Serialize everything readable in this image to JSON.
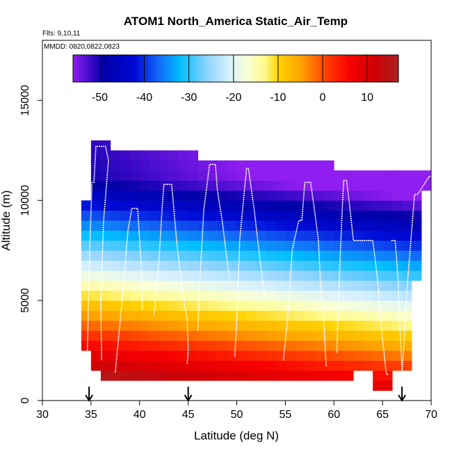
{
  "chart_data": {
    "type": "heatmap",
    "title": "ATOM1 North_America Static_Air_Temp",
    "flights_label": "Flts: 9,10,11",
    "dates_label": "MMDD: 0820,0822,0823",
    "xlabel": "Latitude (deg N)",
    "ylabel": "Altitude (m)",
    "xlim": [
      30,
      70
    ],
    "ylim": [
      0,
      18000
    ],
    "x_ticks": [
      30,
      35,
      40,
      45,
      50,
      55,
      60,
      65,
      70
    ],
    "y_ticks": [
      0,
      5000,
      10000,
      15000
    ],
    "colorbar": {
      "range": [
        -56,
        17
      ],
      "tick_values": [
        -50,
        -40,
        -30,
        -20,
        -10,
        0,
        10
      ],
      "tick_labels": [
        "-50",
        "-40",
        "-30",
        "-20",
        "-10",
        "0",
        "10"
      ]
    },
    "cell_size": {
      "lat": 1,
      "alt": 500
    },
    "columns": [
      {
        "lat": 34,
        "alt_min": 2500,
        "alt_max": 10000
      },
      {
        "lat": 35,
        "alt_min": 1500,
        "alt_max": 13000
      },
      {
        "lat": 36,
        "alt_min": 1000,
        "alt_max": 13000
      },
      {
        "lat": 37,
        "alt_min": 1000,
        "alt_max": 12500
      },
      {
        "lat": 38,
        "alt_min": 1000,
        "alt_max": 12500
      },
      {
        "lat": 39,
        "alt_min": 1000,
        "alt_max": 12500
      },
      {
        "lat": 40,
        "alt_min": 1000,
        "alt_max": 12500
      },
      {
        "lat": 41,
        "alt_min": 1000,
        "alt_max": 12500
      },
      {
        "lat": 42,
        "alt_min": 1000,
        "alt_max": 12500
      },
      {
        "lat": 43,
        "alt_min": 1000,
        "alt_max": 12500
      },
      {
        "lat": 44,
        "alt_min": 1000,
        "alt_max": 12500
      },
      {
        "lat": 45,
        "alt_min": 1000,
        "alt_max": 12500
      },
      {
        "lat": 46,
        "alt_min": 1000,
        "alt_max": 12000
      },
      {
        "lat": 47,
        "alt_min": 1000,
        "alt_max": 12000
      },
      {
        "lat": 48,
        "alt_min": 1000,
        "alt_max": 12000
      },
      {
        "lat": 49,
        "alt_min": 1000,
        "alt_max": 12000
      },
      {
        "lat": 50,
        "alt_min": 1000,
        "alt_max": 12000
      },
      {
        "lat": 51,
        "alt_min": 1000,
        "alt_max": 12000
      },
      {
        "lat": 52,
        "alt_min": 1000,
        "alt_max": 12000
      },
      {
        "lat": 53,
        "alt_min": 1000,
        "alt_max": 12000
      },
      {
        "lat": 54,
        "alt_min": 1000,
        "alt_max": 12000
      },
      {
        "lat": 55,
        "alt_min": 1000,
        "alt_max": 12000
      },
      {
        "lat": 56,
        "alt_min": 1000,
        "alt_max": 12000
      },
      {
        "lat": 57,
        "alt_min": 1000,
        "alt_max": 12000
      },
      {
        "lat": 58,
        "alt_min": 1000,
        "alt_max": 12000
      },
      {
        "lat": 59,
        "alt_min": 1000,
        "alt_max": 12000
      },
      {
        "lat": 60,
        "alt_min": 1000,
        "alt_max": 11500
      },
      {
        "lat": 61,
        "alt_min": 1000,
        "alt_max": 11500
      },
      {
        "lat": 62,
        "alt_min": 1500,
        "alt_max": 11500
      },
      {
        "lat": 63,
        "alt_min": 1500,
        "alt_max": 11500
      },
      {
        "lat": 64,
        "alt_min": 500,
        "alt_max": 11500
      },
      {
        "lat": 65,
        "alt_min": 500,
        "alt_max": 11500
      },
      {
        "lat": 66,
        "alt_min": 1500,
        "alt_max": 11500
      },
      {
        "lat": 67,
        "alt_min": 1500,
        "alt_max": 11500
      },
      {
        "lat": 68,
        "alt_min": 6000,
        "alt_max": 11500
      },
      {
        "lat": 69,
        "alt_min": 10500,
        "alt_max": 11500
      }
    ],
    "profiles": [
      {
        "lat": [
          34.6,
          34.7,
          34.9,
          35.1,
          35.3,
          35.5,
          36.5,
          36.8,
          36.3,
          36.0,
          36.1
        ],
        "alt": [
          2000,
          4000,
          8000,
          10900,
          10900,
          12700,
          12700,
          12000,
          9000,
          5000,
          2000
        ]
      },
      {
        "lat": [
          37.5,
          38.2,
          38.8,
          39.2,
          39.8,
          40.2,
          40.3
        ],
        "alt": [
          1400,
          5000,
          8500,
          9600,
          9600,
          6500,
          4500
        ]
      },
      {
        "lat": [
          41.5,
          42.0,
          42.3,
          42.5,
          43.3,
          43.8,
          44.4,
          44.9,
          45.0,
          44.9
        ],
        "alt": [
          4300,
          7000,
          9500,
          10800,
          10800,
          8000,
          5500,
          4000,
          2500,
          1800
        ]
      },
      {
        "lat": [
          46.0,
          46.2,
          46.6,
          47.2,
          47.8,
          48.0,
          48.5,
          49.0,
          49.3
        ],
        "alt": [
          3500,
          6000,
          9500,
          11800,
          11800,
          10500,
          9000,
          7000,
          6000
        ]
      },
      {
        "lat": [
          49.8,
          50.0,
          50.3,
          51.0,
          51.2,
          51.8,
          52.4,
          52.8,
          53.0
        ],
        "alt": [
          2200,
          4000,
          8000,
          11600,
          11600,
          9500,
          7000,
          5500,
          5200
        ]
      },
      {
        "lat": [
          54.8,
          55.3,
          55.7,
          56.0,
          56.4,
          56.7,
          57.0,
          57.6,
          58.0,
          58.4,
          58.6,
          59.0,
          59.2
        ],
        "alt": [
          2000,
          4500,
          7500,
          8200,
          9000,
          9000,
          10900,
          10900,
          9500,
          8000,
          6000,
          3500,
          1700
        ]
      },
      {
        "lat": [
          60.3,
          60.5,
          60.8,
          61.0,
          61.3,
          61.6,
          62.0,
          62.8,
          63.5,
          63.7,
          64.0,
          64.5,
          64.9,
          65.4,
          65.6
        ],
        "alt": [
          2400,
          5500,
          9000,
          11000,
          11000,
          9800,
          8000,
          8000,
          8000,
          8000,
          8000,
          6000,
          3500,
          1300,
          1300
        ]
      },
      {
        "lat": [
          65.9,
          66.3,
          66.6,
          66.8,
          67.0,
          67.2,
          67.5,
          68.0,
          68.3,
          68.6,
          69.0,
          69.4,
          69.8,
          70.0
        ],
        "alt": [
          8000,
          8000,
          6000,
          3500,
          1500,
          2800,
          5500,
          8500,
          10300,
          10300,
          10600,
          10900,
          11200,
          11200
        ]
      }
    ],
    "arrows_lat": [
      34.8,
      45.0,
      67.0
    ]
  }
}
